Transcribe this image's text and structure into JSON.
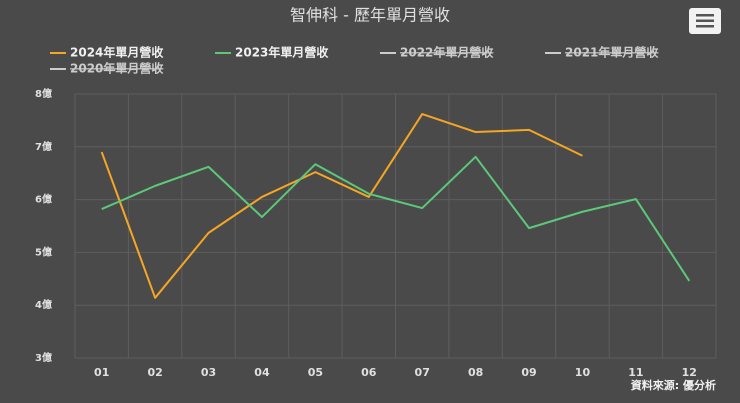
{
  "chart_data": {
    "type": "line",
    "title": "智伸科 - 歷年單月營收",
    "categories": [
      "01",
      "02",
      "03",
      "04",
      "05",
      "06",
      "07",
      "08",
      "09",
      "10",
      "11",
      "12"
    ],
    "series": [
      {
        "name": "2024年單月營收",
        "color": "#f5a623",
        "visible": true,
        "values": [
          6.9,
          4.14,
          5.37,
          6.05,
          6.52,
          6.05,
          7.62,
          7.28,
          7.32,
          6.83,
          null,
          null
        ]
      },
      {
        "name": "2023年單月營收",
        "color": "#5cc87a",
        "visible": true,
        "values": [
          5.82,
          6.26,
          6.62,
          5.67,
          6.67,
          6.11,
          5.84,
          6.81,
          5.46,
          5.77,
          6.01,
          4.46
        ]
      },
      {
        "name": "2022年單月營收",
        "color": "#dddddd",
        "visible": false
      },
      {
        "name": "2021年單月營收",
        "color": "#dddddd",
        "visible": false
      },
      {
        "name": "2020年單月營收",
        "color": "#dddddd",
        "visible": false
      }
    ],
    "ylim": [
      3,
      8
    ],
    "yticks": [
      {
        "value": 3,
        "label": "3億"
      },
      {
        "value": 4,
        "label": "4億"
      },
      {
        "value": 5,
        "label": "5億"
      },
      {
        "value": 6,
        "label": "6億"
      },
      {
        "value": 7,
        "label": "7億"
      },
      {
        "value": 8,
        "label": "8億"
      }
    ],
    "grid": true,
    "source": "資料來源: 優分析"
  }
}
